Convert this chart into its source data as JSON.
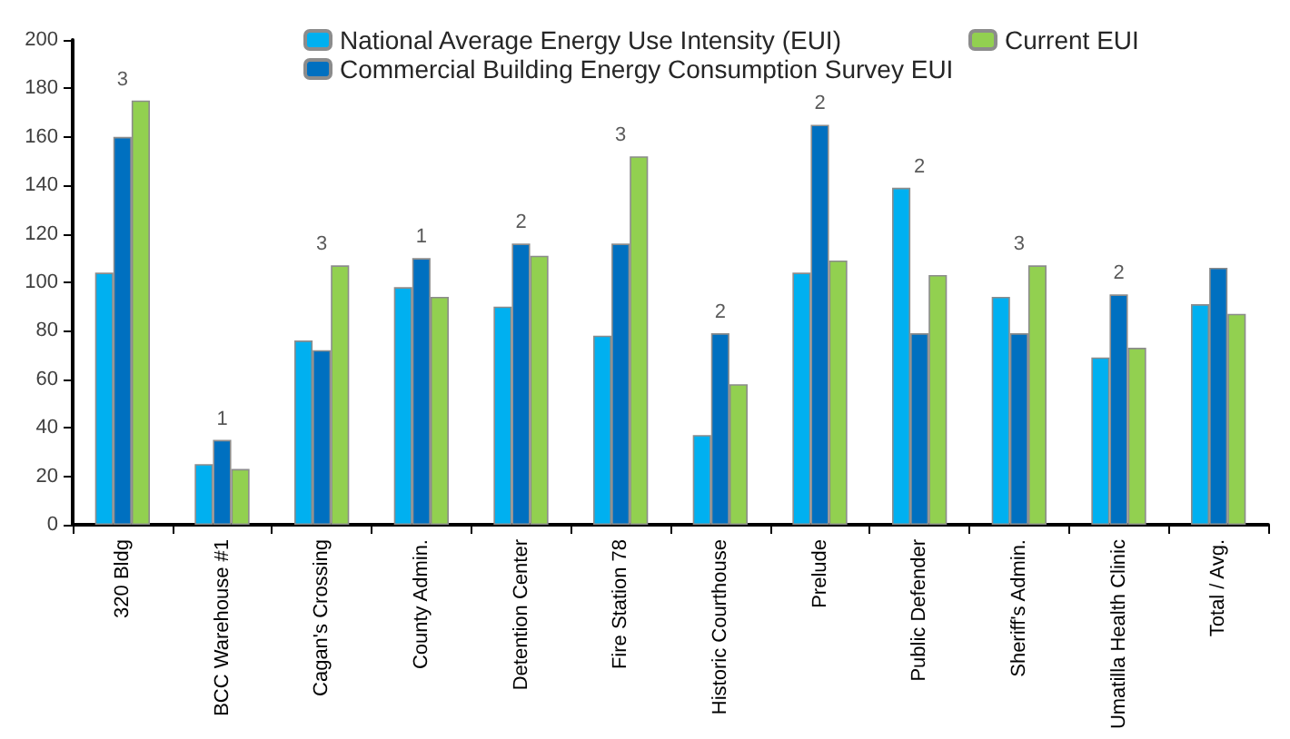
{
  "chart_data": {
    "type": "bar",
    "categories": [
      "320 Bldg",
      "BCC Warehouse #1",
      "Cagan's Crossing",
      "County Admin.",
      "Detention Center",
      "Fire Station 78",
      "Historic Courthouse",
      "Prelude",
      "Public Defender",
      "Sheriff's Admin.",
      "Umatilla Health Clinic",
      "Total / Avg."
    ],
    "series": [
      {
        "name": "National Average Energy Use Intensity (EUI)",
        "color": "#00b0f0",
        "values": [
          104,
          25,
          76,
          98,
          90,
          78,
          37,
          104,
          139,
          94,
          69,
          91
        ]
      },
      {
        "name": "Commercial Building Energy Consumption Survey EUI",
        "color": "#0070c0",
        "values": [
          160,
          35,
          72,
          110,
          116,
          116,
          79,
          165,
          79,
          79,
          95,
          106
        ]
      },
      {
        "name": "Current EUI",
        "color": "#92d050",
        "values": [
          175,
          23,
          107,
          94,
          111,
          152,
          58,
          109,
          103,
          107,
          73,
          87
        ]
      }
    ],
    "annotations": [
      "3",
      "1",
      "3",
      "1",
      "2",
      "3",
      "2",
      "2",
      "2",
      "3",
      "2"
    ],
    "ylim": [
      0,
      200
    ],
    "yticks": [
      0,
      20,
      40,
      60,
      80,
      100,
      120,
      140,
      160,
      180,
      200
    ],
    "grid": false,
    "legend": "top right"
  }
}
